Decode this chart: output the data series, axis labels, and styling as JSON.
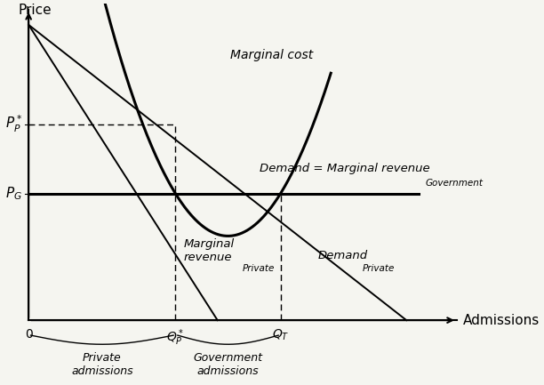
{
  "title": "",
  "xlabel": "Admissions",
  "ylabel": "Price",
  "xlim": [
    -0.5,
    10.5
  ],
  "ylim": [
    -1.8,
    10.5
  ],
  "bg_color": "#f5f5f0",
  "QP_star": 3.5,
  "QT": 6.0,
  "PG": 4.2,
  "PP_star": 6.5,
  "dem_x0": 0.0,
  "dem_y0": 9.8,
  "dem_x1": 9.0,
  "dem_y1": 0.0,
  "mc_a": 0.9,
  "mc_xmin": 1.0,
  "mc_xmax": 7.2,
  "label_marginal_cost": "Marginal cost",
  "label_demand_govt_main": "Demand = Marginal revenue",
  "label_demand_govt_sub": "Government",
  "label_demand_private_main": "Demand",
  "label_demand_private_sub": "Private",
  "label_mr_private_main": "Marginal\nrevenue",
  "label_mr_private_sub": "Private",
  "label_PP": "$P_P^*$",
  "label_PG": "$P_G$",
  "label_QP": "$Q_P^*$",
  "label_QT": "$Q_T$",
  "label_zero": "0",
  "label_private_admissions": "Private\nadmissions",
  "label_govt_admissions": "Government\nadmissions"
}
